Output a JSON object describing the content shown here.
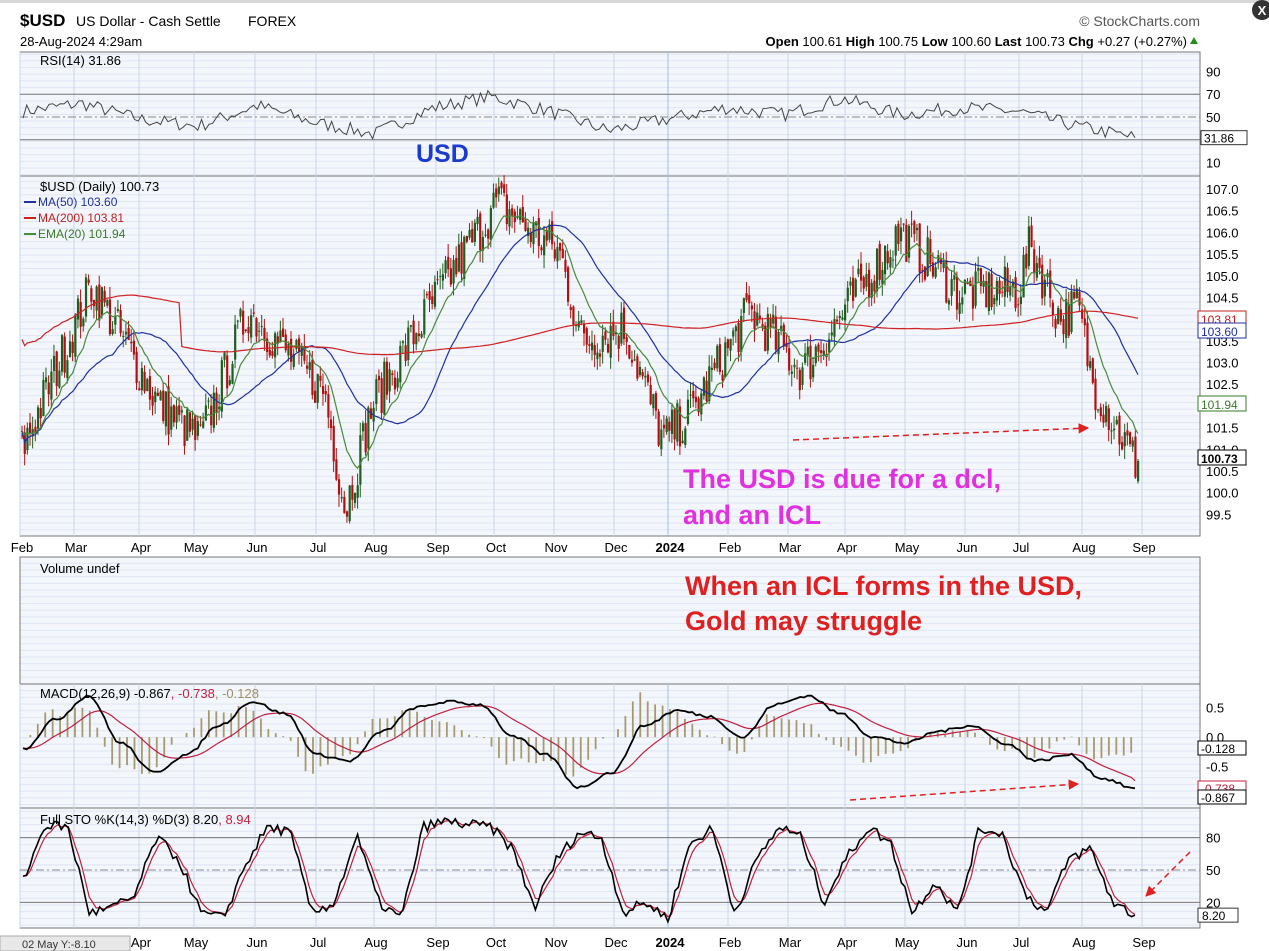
{
  "header": {
    "symbol": "$USD",
    "name": "US Dollar - Cash Settle",
    "exchange": "FOREX",
    "brand": "StockCharts.com",
    "date": "28-Aug-2024 4:29am",
    "open_label": "Open",
    "open": "100.61",
    "high_label": "High",
    "high": "100.75",
    "low_label": "Low",
    "low": "100.60",
    "last_label": "Last",
    "last": "100.73",
    "chg_label": "Chg",
    "chg": "+0.27 (+0.27%)"
  },
  "annotations": {
    "usd": "USD",
    "dcl_line1": "The USD is due for a dcl,",
    "dcl_line2": "and an ICL",
    "icl_line1": "When an ICL forms in the USD,",
    "icl_line2": "Gold may struggle"
  },
  "colors": {
    "up": "#1e5e1e",
    "down": "#b01010",
    "ma50": "#2030a0",
    "ma200": "#d02020",
    "ema20": "#4a8a3a",
    "annot_pink": "#e030e0",
    "annot_red": "#e02020",
    "annot_blue": "#1a3ad0"
  },
  "chart_data": [
    {
      "type": "line",
      "panel": "RSI",
      "legend": "RSI(14) 31.86",
      "ylim": [
        0,
        100
      ],
      "ticks": [
        "90",
        "70",
        "50",
        "30",
        "10"
      ],
      "last_value": "31.86",
      "x": [
        "Feb",
        "Mar",
        "Apr",
        "May",
        "Jun",
        "Jul",
        "Aug",
        "Sep",
        "Oct",
        "Nov",
        "Dec",
        "2024",
        "Feb",
        "Mar",
        "Apr",
        "May",
        "Jun",
        "Jul",
        "Aug",
        "Sep"
      ],
      "values": [
        55,
        62,
        48,
        42,
        60,
        45,
        35,
        58,
        68,
        55,
        38,
        48,
        58,
        52,
        66,
        52,
        58,
        55,
        42,
        32
      ]
    },
    {
      "type": "candlestick",
      "panel": "Price",
      "legend": [
        "$USD (Daily) 100.73",
        "MA(50) 103.60",
        "MA(200) 103.81",
        "EMA(20) 101.94"
      ],
      "ylim": [
        99.0,
        107.3
      ],
      "ticks": [
        "107.0",
        "106.5",
        "106.0",
        "105.5",
        "105.0",
        "104.5",
        "104.0",
        "103.5",
        "103.0",
        "102.5",
        "102.0",
        "101.5",
        "101.0",
        "100.5",
        "100.0",
        "99.5"
      ],
      "x_ticks": [
        "Feb",
        "Mar",
        "Apr",
        "May",
        "Jun",
        "Jul",
        "Aug",
        "Sep",
        "Oct",
        "Nov",
        "Dec",
        "2024",
        "Feb",
        "Mar",
        "Apr",
        "May",
        "Jun",
        "Jul",
        "Aug",
        "Sep"
      ],
      "price_anchors": [
        [
          "Feb",
          101.0
        ],
        [
          "Mar",
          104.8
        ],
        [
          "Apr",
          102.0
        ],
        [
          "May",
          101.2
        ],
        [
          "Jun",
          104.2
        ],
        [
          "Jul",
          102.3
        ],
        [
          "Jul",
          99.6
        ],
        [
          "Aug",
          102.0
        ],
        [
          "Sep",
          104.5
        ],
        [
          "Oct",
          106.7
        ],
        [
          "Nov",
          105.5
        ],
        [
          "Nov",
          103.5
        ],
        [
          "Dec",
          103.8
        ],
        [
          "Dec",
          101.2
        ],
        [
          "2024",
          101.8
        ],
        [
          "Feb",
          104.2
        ],
        [
          "Mar",
          102.8
        ],
        [
          "Apr",
          104.2
        ],
        [
          "Apr",
          106.0
        ],
        [
          "May",
          104.6
        ],
        [
          "Jun",
          104.7
        ],
        [
          "Jul",
          105.7
        ],
        [
          "Jul",
          104.0
        ],
        [
          "Aug",
          104.3
        ],
        [
          "Aug",
          102.6
        ],
        [
          "Sep",
          100.7
        ]
      ],
      "series": [
        {
          "name": "MA(50)",
          "last": "103.60"
        },
        {
          "name": "MA(200)",
          "last": "103.81"
        },
        {
          "name": "EMA(20)",
          "last": "101.94"
        }
      ],
      "right_labels": [
        "103.81",
        "103.60",
        "101.94",
        "100.73"
      ]
    },
    {
      "type": "bar",
      "panel": "Volume",
      "legend": "Volume undef"
    },
    {
      "type": "line",
      "panel": "MACD",
      "legend_main": "MACD(12,26,9) -0.867",
      "legend_sig": ", -0.738",
      "legend_hist": ", -0.128",
      "ylim": [
        -1.2,
        0.9
      ],
      "ticks": [
        "0.5",
        "0.0",
        "-0.5"
      ],
      "right_labels": [
        "-0.128",
        "-0.738",
        "-0.867"
      ],
      "values": [
        -0.2,
        0.3,
        0.7,
        -0.1,
        -0.6,
        -0.3,
        0.2,
        0.6,
        0.4,
        -0.3,
        -0.4,
        0.1,
        0.5,
        0.6,
        0.55,
        0.0,
        -0.3,
        -0.85,
        -0.6,
        0.2,
        0.45,
        0.35,
        0.0,
        0.55,
        0.7,
        0.4,
        0.0,
        -0.1,
        0.1,
        0.2,
        -0.1,
        -0.4,
        -0.3,
        -0.7,
        -0.87
      ]
    },
    {
      "type": "line",
      "panel": "Stochastic",
      "legend_main": "Full STO %K(14,3) %D(3) 8.20",
      "legend_d": ", 8.94",
      "ylim": [
        0,
        100
      ],
      "ticks": [
        "80",
        "50",
        "20"
      ],
      "last_value": "8.20",
      "x_ticks": [
        "Apr",
        "May",
        "Jun",
        "Jul",
        "Aug",
        "Sep",
        "Oct",
        "Nov",
        "Dec",
        "2024",
        "Feb",
        "Mar",
        "Apr",
        "May",
        "Jun",
        "Jul",
        "Aug",
        "Sep"
      ],
      "values": [
        40,
        92,
        90,
        10,
        15,
        25,
        80,
        60,
        10,
        5,
        55,
        90,
        85,
        10,
        20,
        82,
        20,
        5,
        90,
        95,
        92,
        90,
        70,
        15,
        60,
        85,
        80,
        10,
        20,
        5,
        75,
        88,
        10,
        60,
        90,
        80,
        20,
        60,
        90,
        75,
        10,
        40,
        10,
        88,
        85,
        30,
        10,
        60,
        70,
        20,
        8
      ]
    }
  ],
  "footer": {
    "tooltip": "02 May Y:-8.10"
  }
}
